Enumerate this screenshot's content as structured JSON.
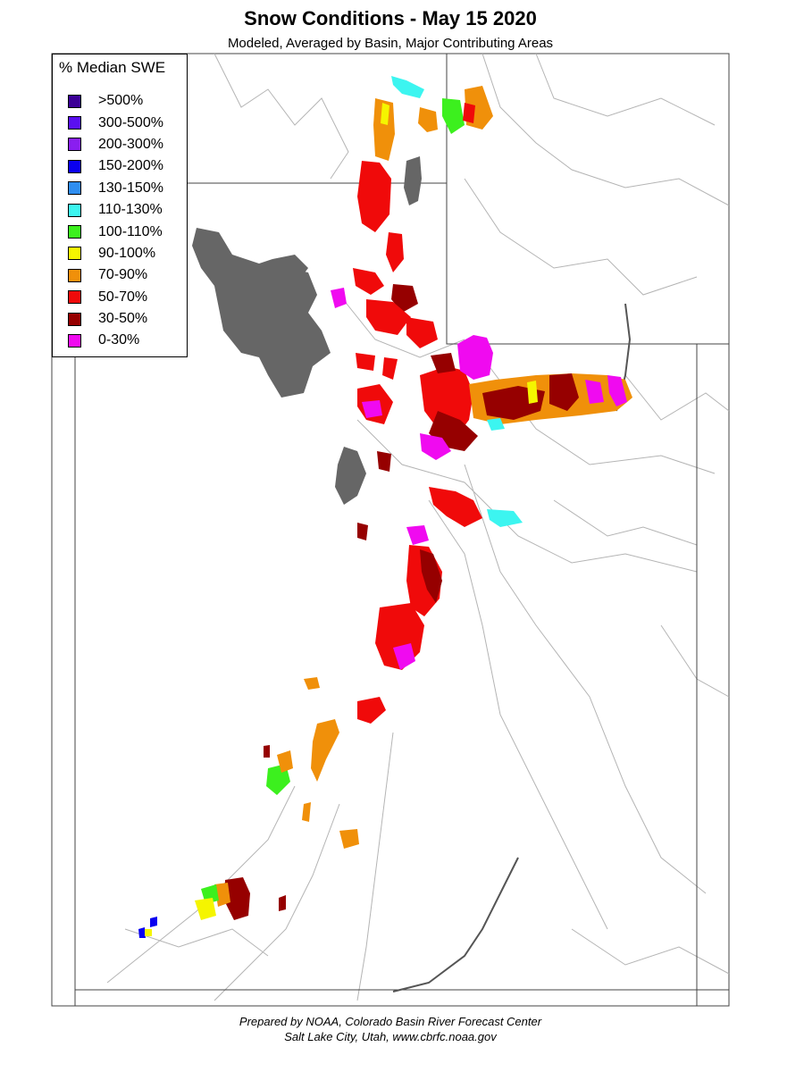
{
  "header": {
    "title": "Snow Conditions - May 15 2020",
    "subtitle": "Modeled, Averaged by Basin, Major Contributing Areas"
  },
  "legend": {
    "title": "% Median SWE",
    "items": [
      {
        "label": ">500%",
        "color": "#3b0096"
      },
      {
        "label": "300-500%",
        "color": "#5a0ff0"
      },
      {
        "label": "200-300%",
        "color": "#8a1ef0"
      },
      {
        "label": "150-200%",
        "color": "#0a00f0"
      },
      {
        "label": "130-150%",
        "color": "#2f8ef0"
      },
      {
        "label": "110-130%",
        "color": "#3cf5f0"
      },
      {
        "label": "100-110%",
        "color": "#3cf01e"
      },
      {
        "label": "90-100%",
        "color": "#f5f500"
      },
      {
        "label": "70-90%",
        "color": "#f0900a"
      },
      {
        "label": "50-70%",
        "color": "#f00a0a"
      },
      {
        "label": "30-50%",
        "color": "#960000"
      },
      {
        "label": "0-30%",
        "color": "#f00af0"
      }
    ]
  },
  "map_colors": {
    "lake": "#666666",
    "border": "#444444",
    "basin_line": "#b4b4b4"
  },
  "footer": {
    "line1": "Prepared by NOAA, Colorado Basin River Forecast Center",
    "line2": "Salt Lake City, Utah, www.cbrfc.noaa.gov"
  }
}
